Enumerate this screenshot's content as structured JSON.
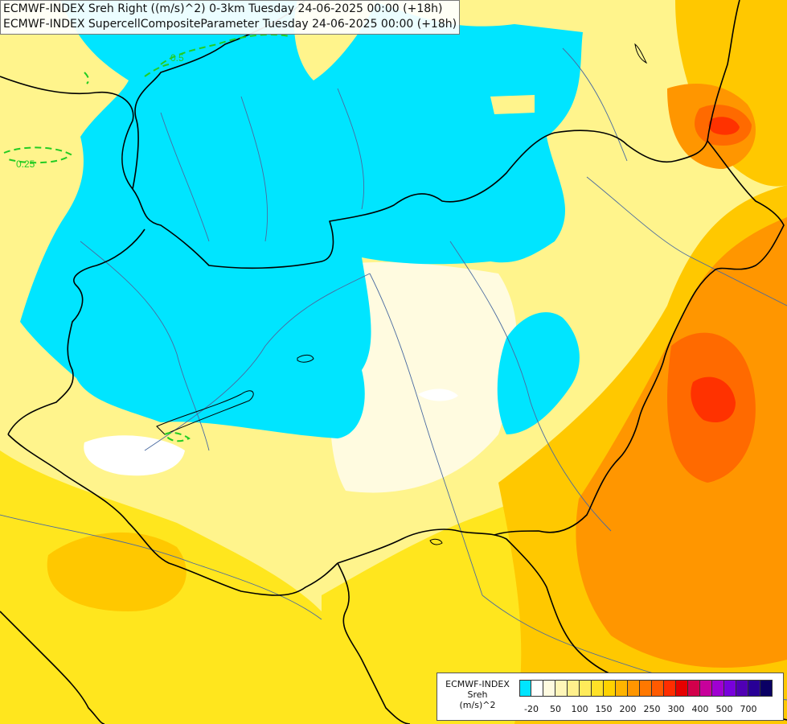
{
  "titles": {
    "line1": "ECMWF-INDEX Sreh Right ((m/s)^2) 0-3km Tuesday 24-06-2025 00:00 (+18h)",
    "line2": "ECMWF-INDEX SupercellCompositeParameter Tuesday 24-06-2025 00:00 (+18h)"
  },
  "contour_labels": [
    "0.5",
    "0.25"
  ],
  "legend": {
    "line1": "ECMWF-INDEX",
    "line2": "Sreh",
    "line3": "(m/s)^2",
    "tick_labels": [
      "-20",
      "50",
      "100",
      "150",
      "200",
      "250",
      "300",
      "400",
      "500",
      "700"
    ],
    "colors": [
      "#00e5ff",
      "#ffffff",
      "#fffbe0",
      "#fff6b8",
      "#fff08c",
      "#ffeb5a",
      "#ffe128",
      "#ffd200",
      "#ffb400",
      "#ff9600",
      "#ff7800",
      "#ff5a00",
      "#ff2d00",
      "#e60000",
      "#d2004b",
      "#c8009b",
      "#a000d2",
      "#7800dc",
      "#5000b4",
      "#280096",
      "#0a0064"
    ]
  },
  "colors": {
    "cyan": "#00e5ff",
    "pale": "#fffbe0",
    "light_yellow": "#fff48c",
    "yellow": "#ffe61e",
    "gold": "#ffc800",
    "orange": "#ff9600",
    "dark_orange": "#ff6a00",
    "red": "#ff3200",
    "border": "#000000",
    "river": "#4a6aa0",
    "contour": "#22cc22"
  }
}
